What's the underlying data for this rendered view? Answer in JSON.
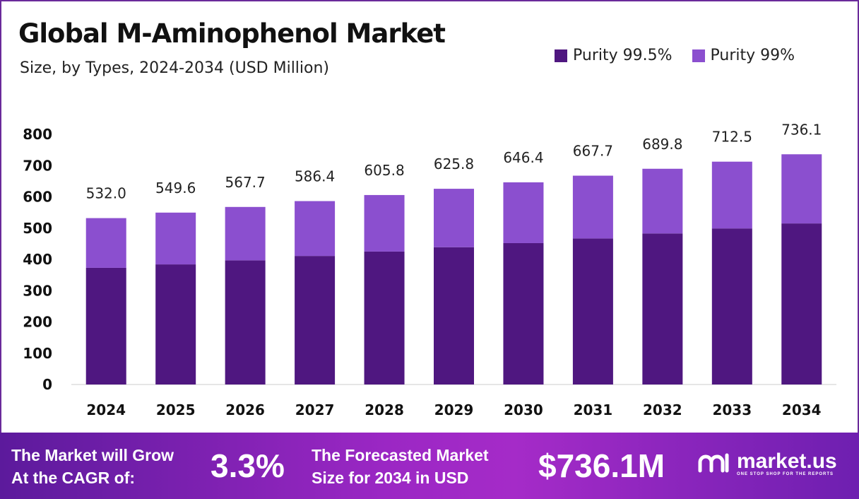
{
  "chart_data": {
    "type": "bar",
    "stacked": true,
    "title": "Global M-Aminophenol Market",
    "subtitle": "Size, by Types, 2024-2034 (USD Million)",
    "categories": [
      "2024",
      "2025",
      "2026",
      "2027",
      "2028",
      "2029",
      "2030",
      "2031",
      "2032",
      "2033",
      "2034"
    ],
    "series": [
      {
        "name": "Purity 99.5%",
        "color": "#4f1780",
        "values": [
          373,
          384,
          397,
          411,
          425,
          439,
          452,
          467,
          483,
          499,
          515
        ]
      },
      {
        "name": "Purity 99%",
        "color": "#8b4fcf",
        "values": [
          159,
          165.6,
          170.7,
          175.4,
          180.8,
          186.8,
          194.4,
          200.7,
          206.8,
          213.5,
          221.1
        ]
      }
    ],
    "totals": [
      "532.0",
      "549.6",
      "567.7",
      "586.4",
      "605.8",
      "625.8",
      "646.4",
      "667.7",
      "689.8",
      "712.5",
      "736.1"
    ],
    "yticks": [
      "0",
      "100",
      "200",
      "300",
      "400",
      "500",
      "600",
      "700",
      "800"
    ],
    "ylim": [
      0,
      800
    ],
    "grid": false,
    "legend": "top-right"
  },
  "footer": {
    "cagr_label_1": "The Market will Grow",
    "cagr_label_2": "At the CAGR of:",
    "cagr_value": "3.3%",
    "forecast_label_1": "The Forecasted Market",
    "forecast_label_2": "Size for 2034 in USD",
    "forecast_value": "$736.1M",
    "brand": "market.us",
    "tagline": "ONE STOP SHOP FOR THE REPORTS"
  }
}
